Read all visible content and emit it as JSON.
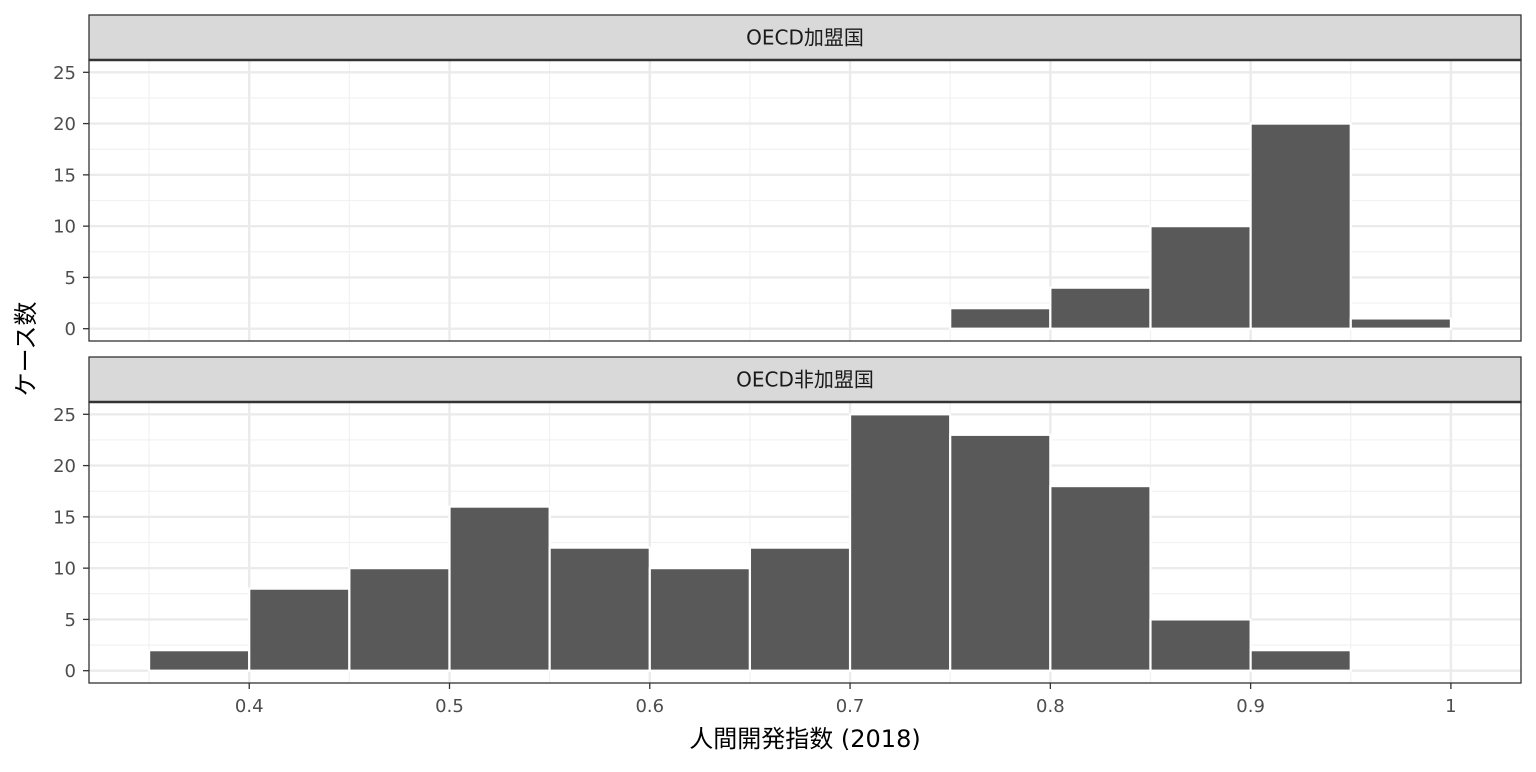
{
  "chart_data": {
    "type": "bar",
    "subtype": "histogram-faceted",
    "xlabel": "人間開発指数 (2018)",
    "ylabel": "ケース数",
    "xlim": [
      0.32,
      1.035
    ],
    "x_ticks": [
      0.4,
      0.5,
      0.6,
      0.7,
      0.8,
      0.9,
      1.0
    ],
    "x_tick_labels": [
      "0.4",
      "0.5",
      "0.6",
      "0.7",
      "0.8",
      "0.9",
      "1"
    ],
    "bin_width": 0.05,
    "grid": true,
    "theme": "black-and-white",
    "bar_color": "#595959",
    "bar_outline": "#ffffff",
    "panels": [
      {
        "title": "OECD加盟国",
        "ylim": [
          -1.2,
          26.2
        ],
        "y_ticks": [
          0,
          5,
          10,
          15,
          20,
          25
        ],
        "y_tick_labels": [
          "0",
          "5",
          "10",
          "15",
          "20",
          "25"
        ],
        "bins": [
          {
            "x0": 0.75,
            "x1": 0.8,
            "count": 2
          },
          {
            "x0": 0.8,
            "x1": 0.85,
            "count": 4
          },
          {
            "x0": 0.85,
            "x1": 0.9,
            "count": 10
          },
          {
            "x0": 0.9,
            "x1": 0.95,
            "count": 20
          },
          {
            "x0": 0.95,
            "x1": 1.0,
            "count": 1
          }
        ]
      },
      {
        "title": "OECD非加盟国",
        "ylim": [
          -1.2,
          26.2
        ],
        "y_ticks": [
          0,
          5,
          10,
          15,
          20,
          25
        ],
        "y_tick_labels": [
          "0",
          "5",
          "10",
          "15",
          "20",
          "25"
        ],
        "bins": [
          {
            "x0": 0.35,
            "x1": 0.4,
            "count": 2
          },
          {
            "x0": 0.4,
            "x1": 0.45,
            "count": 8
          },
          {
            "x0": 0.45,
            "x1": 0.5,
            "count": 10
          },
          {
            "x0": 0.5,
            "x1": 0.55,
            "count": 16
          },
          {
            "x0": 0.55,
            "x1": 0.6,
            "count": 12
          },
          {
            "x0": 0.6,
            "x1": 0.65,
            "count": 10
          },
          {
            "x0": 0.65,
            "x1": 0.7,
            "count": 12
          },
          {
            "x0": 0.7,
            "x1": 0.75,
            "count": 25
          },
          {
            "x0": 0.75,
            "x1": 0.8,
            "count": 23
          },
          {
            "x0": 0.8,
            "x1": 0.85,
            "count": 18
          },
          {
            "x0": 0.85,
            "x1": 0.9,
            "count": 5
          },
          {
            "x0": 0.9,
            "x1": 0.95,
            "count": 2
          }
        ]
      }
    ]
  }
}
